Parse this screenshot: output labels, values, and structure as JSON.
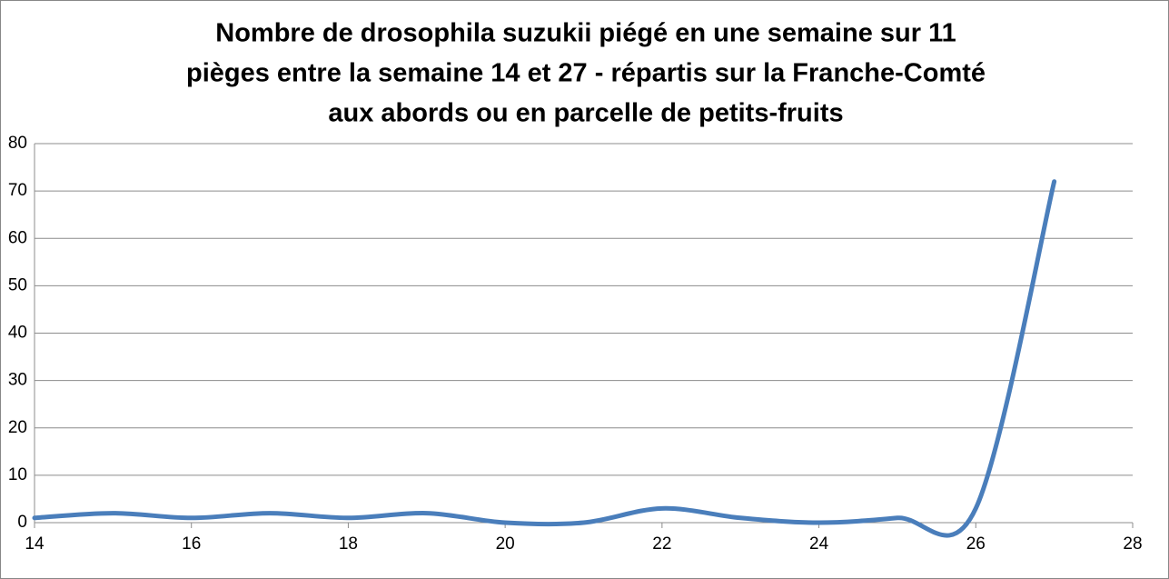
{
  "chart_data": {
    "type": "line",
    "title": [
      "Nombre de drosophila suzukii piégé en une semaine sur 11",
      "pièges entre la semaine 14 et 27 - répartis sur la Franche-Comté",
      "aux abords ou en parcelle de petits-fruits"
    ],
    "x": [
      14,
      15,
      16,
      17,
      18,
      19,
      20,
      21,
      22,
      23,
      24,
      25,
      26,
      27
    ],
    "series": [
      {
        "color": "#4a7ebb",
        "values": [
          1,
          2,
          1,
          2,
          1,
          2,
          0,
          0,
          3,
          1,
          0,
          1,
          3,
          72
        ]
      }
    ],
    "xlim": [
      14,
      28
    ],
    "xticks": [
      14,
      16,
      18,
      20,
      22,
      24,
      26,
      28
    ],
    "ylim": [
      0,
      80
    ],
    "yticks": [
      0,
      10,
      20,
      30,
      40,
      50,
      60,
      70,
      80
    ],
    "grid": true,
    "smooth": true
  }
}
